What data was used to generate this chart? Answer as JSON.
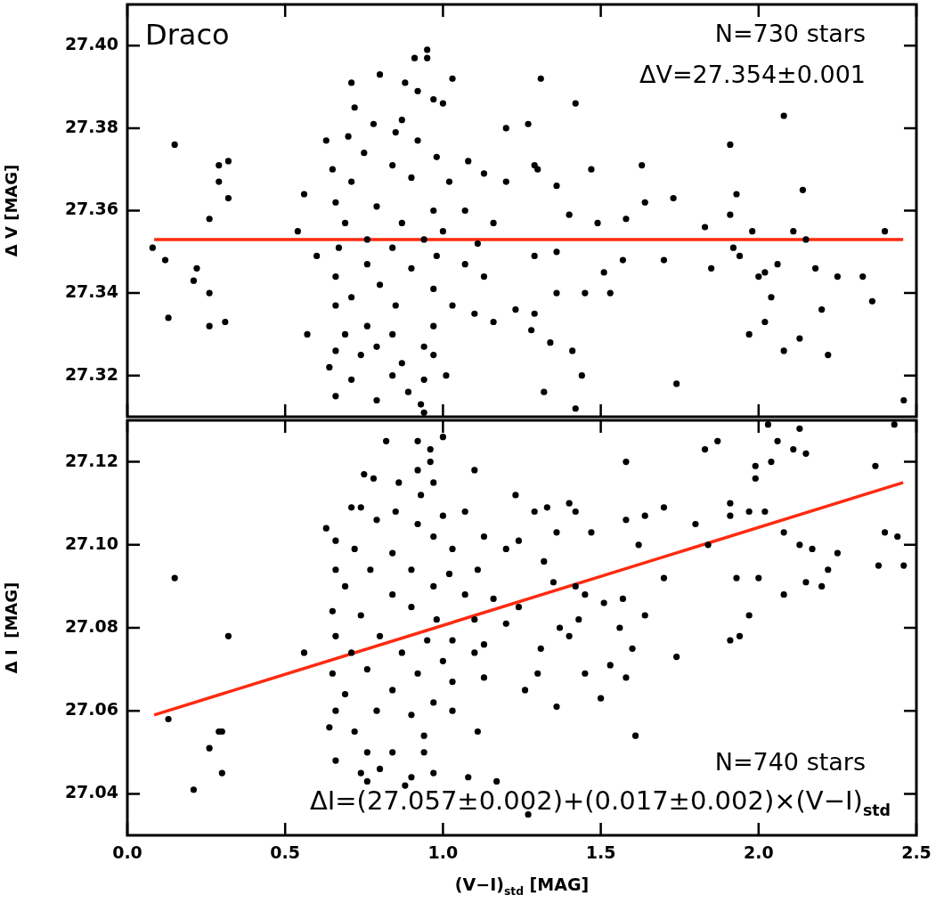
{
  "chart_data": [
    {
      "type": "scatter",
      "ylabel": "Δ V [MAG]",
      "xlim": [
        0,
        2.5
      ],
      "ylim": [
        27.31,
        27.41
      ],
      "xticks": [
        0,
        0.5,
        1,
        1.5,
        2,
        2.5
      ],
      "yticks": [
        {
          "value": 27.32,
          "label": "27.32"
        },
        {
          "value": 27.34,
          "label": "27.34"
        },
        {
          "value": 27.36,
          "label": "27.36"
        },
        {
          "value": 27.38,
          "label": "27.38"
        },
        {
          "value": 27.4,
          "label": "27.40"
        }
      ],
      "tick_labels": "y",
      "annotations": [
        "Draco",
        "N=730 stars",
        "ΔV=27.354±0.001"
      ],
      "series": [
        {
          "color": "#000000",
          "marker": "circle",
          "x": [
            1.31,
            1.42,
            1.27,
            1.2,
            2.08,
            1.91,
            1.47,
            1.63,
            1.64,
            1.73,
            1.93,
            2.14,
            1.91,
            1.83,
            1.49,
            1.58,
            1.98,
            2.11,
            2.4,
            2.15,
            1.92,
            1.94,
            1.7,
            1.57,
            1.85,
            2.06,
            2.18,
            2.0,
            2.02,
            2.25,
            2.33,
            1.51,
            2.04,
            2.2,
            2.36,
            2.02,
            1.97,
            2.13,
            2.08,
            2.22,
            1.74,
            2.46,
            1.42,
            1.44,
            1.32,
            1.53,
            1.45,
            1.36,
            1.34,
            1.41,
            1.29,
            1.28,
            1.23,
            1.36,
            1.29,
            1.4,
            1.36,
            1.29,
            1.3,
            0.08,
            0.12,
            0.15,
            0.13,
            0.22,
            0.21,
            0.26,
            0.26,
            0.26,
            0.31,
            0.29,
            0.29,
            0.32,
            0.32,
            0.56,
            0.54,
            0.57,
            0.6,
            0.95,
            0.95,
            0.91,
            1.03,
            0.71,
            0.8,
            0.88,
            0.92,
            0.97,
            1.0,
            0.72,
            0.78,
            0.87,
            0.63,
            0.7,
            0.85,
            0.92,
            0.98,
            0.75,
            0.65,
            0.84,
            1.08,
            0.71,
            0.9,
            1.02,
            1.13,
            1.2,
            0.66,
            0.79,
            0.97,
            1.07,
            1.16,
            0.69,
            0.87,
            1.0,
            0.76,
            0.94,
            1.11,
            0.67,
            0.84,
            0.98,
            0.76,
            0.9,
            1.07,
            1.13,
            0.66,
            0.8,
            0.97,
            0.71,
            0.85,
            1.03,
            1.1,
            0.66,
            0.76,
            0.97,
            1.16,
            0.69,
            0.84,
            0.94,
            0.66,
            0.79,
            0.74,
            0.87,
            0.64,
            0.97,
            0.71,
            0.79,
            0.66,
            0.89,
            0.94,
            0.93,
            0.94,
            1.01,
            0.84
          ],
          "values": [
            27.392,
            27.386,
            27.381,
            27.38,
            27.383,
            27.376,
            27.37,
            27.371,
            27.362,
            27.363,
            27.364,
            27.365,
            27.359,
            27.356,
            27.357,
            27.358,
            27.355,
            27.355,
            27.355,
            27.353,
            27.351,
            27.349,
            27.348,
            27.348,
            27.346,
            27.347,
            27.346,
            27.344,
            27.345,
            27.344,
            27.344,
            27.345,
            27.339,
            27.336,
            27.338,
            27.333,
            27.33,
            27.329,
            27.326,
            27.325,
            27.318,
            27.314,
            27.312,
            27.32,
            27.316,
            27.34,
            27.34,
            27.34,
            27.328,
            27.326,
            27.335,
            27.331,
            27.336,
            27.35,
            27.349,
            27.359,
            27.366,
            27.371,
            27.37,
            27.351,
            27.348,
            27.376,
            27.334,
            27.346,
            27.343,
            27.358,
            27.34,
            27.332,
            27.333,
            27.371,
            27.367,
            27.372,
            27.363,
            27.364,
            27.355,
            27.33,
            27.349,
            27.399,
            27.397,
            27.397,
            27.392,
            27.391,
            27.393,
            27.391,
            27.389,
            27.387,
            27.386,
            27.385,
            27.381,
            27.382,
            27.377,
            27.378,
            27.379,
            27.377,
            27.373,
            27.374,
            27.37,
            27.371,
            27.372,
            27.367,
            27.368,
            27.367,
            27.369,
            27.367,
            27.362,
            27.361,
            27.36,
            27.36,
            27.357,
            27.357,
            27.357,
            27.355,
            27.353,
            27.353,
            27.352,
            27.351,
            27.351,
            27.349,
            27.347,
            27.346,
            27.347,
            27.344,
            27.344,
            27.342,
            27.341,
            27.339,
            27.337,
            27.337,
            27.335,
            27.337,
            27.332,
            27.332,
            27.333,
            27.33,
            27.33,
            27.327,
            27.326,
            27.327,
            27.325,
            27.323,
            27.322,
            27.325,
            27.319,
            27.314,
            27.315,
            27.316,
            27.319,
            27.313,
            27.311,
            27.32,
            27.32
          ]
        },
        {
          "type": "line",
          "color": "#ff2a10",
          "x": [
            0.085,
            2.458
          ],
          "values": [
            27.353,
            27.353
          ]
        }
      ]
    },
    {
      "type": "scatter",
      "xlabel": "(V−I)$_{std}$ [MAG]",
      "ylabel": "Δ I  [MAG]",
      "xlim": [
        0,
        2.5
      ],
      "ylim": [
        27.03,
        27.13
      ],
      "xticks": [
        {
          "value": 0,
          "label": "0.0"
        },
        {
          "value": 0.5,
          "label": "0.5"
        },
        {
          "value": 1,
          "label": "1.0"
        },
        {
          "value": 1.5,
          "label": "1.5"
        },
        {
          "value": 2,
          "label": "2.0"
        },
        {
          "value": 2.5,
          "label": "2.5"
        }
      ],
      "yticks": [
        {
          "value": 27.04,
          "label": "27.04"
        },
        {
          "value": 27.06,
          "label": "27.06"
        },
        {
          "value": 27.08,
          "label": "27.08"
        },
        {
          "value": 27.1,
          "label": "27.10"
        },
        {
          "value": 27.12,
          "label": "27.12"
        }
      ],
      "annotations": [
        "N=740 stars",
        "ΔI=(27.057±0.002)+(0.017±0.002)×(V−I)$_{std}$"
      ],
      "series": [
        {
          "color": "#000000",
          "marker": "circle",
          "x": [
            2.03,
            2.06,
            2.13,
            2.11,
            2.15,
            2.43,
            1.83,
            1.87,
            2.04,
            1.99,
            1.99,
            2.37,
            1.58,
            1.7,
            1.64,
            1.58,
            1.8,
            1.91,
            1.91,
            1.97,
            2.02,
            2.08,
            2.13,
            2.17,
            2.25,
            2.4,
            2.44,
            2.38,
            2.46,
            2.22,
            2.15,
            2.08,
            2.2,
            2.0,
            1.93,
            1.84,
            1.62,
            1.7,
            1.97,
            1.94,
            1.91,
            1.74,
            1.64,
            1.57,
            1.51,
            1.56,
            1.6,
            1.53,
            1.58,
            1.5,
            1.61,
            1.36,
            1.45,
            1.45,
            1.47,
            1.42,
            1.4,
            1.33,
            1.29,
            1.36,
            1.43,
            1.4,
            1.37,
            1.42,
            1.35,
            1.31,
            1.26,
            1.3,
            1.24,
            1.32,
            1.23,
            1.24,
            1.17,
            1.08,
            1.27,
            0.15,
            0.32,
            0.13,
            0.29,
            0.3,
            0.26,
            0.3,
            0.21,
            0.56,
            0.63,
            1.0,
            0.92,
            0.82,
            0.96,
            0.96,
            0.92,
            0.75,
            0.78,
            1.1,
            0.86,
            0.93,
            0.97,
            0.71,
            0.74,
            0.85,
            1.07,
            0.79,
            0.92,
            1.0,
            0.66,
            0.72,
            0.84,
            0.97,
            1.03,
            1.13,
            1.2,
            0.66,
            0.77,
            0.9,
            1.02,
            1.11,
            0.69,
            0.84,
            0.97,
            1.07,
            1.16,
            0.65,
            0.74,
            0.9,
            0.98,
            1.1,
            1.2,
            0.66,
            0.8,
            0.95,
            1.03,
            1.13,
            0.71,
            0.87,
            1.0,
            1.1,
            0.65,
            0.76,
            0.92,
            1.03,
            1.13,
            0.69,
            0.84,
            0.97,
            0.66,
            0.79,
            0.9,
            1.03,
            1.11,
            0.72,
            0.94,
            0.64,
            0.66,
            0.76,
            0.84,
            0.94,
            0.74,
            0.8,
            0.9,
            0.76,
            0.88,
            0.97
          ],
          "values": [
            27.129,
            27.125,
            27.128,
            27.123,
            27.122,
            27.129,
            27.123,
            27.125,
            27.12,
            27.119,
            27.116,
            27.119,
            27.12,
            27.109,
            27.107,
            27.106,
            27.105,
            27.11,
            27.107,
            27.108,
            27.108,
            27.103,
            27.1,
            27.099,
            27.098,
            27.103,
            27.102,
            27.095,
            27.095,
            27.094,
            27.091,
            27.088,
            27.09,
            27.092,
            27.092,
            27.1,
            27.1,
            27.092,
            27.083,
            27.078,
            27.077,
            27.073,
            27.083,
            27.087,
            27.086,
            27.08,
            27.075,
            27.071,
            27.068,
            27.063,
            27.054,
            27.061,
            27.069,
            27.088,
            27.103,
            27.108,
            27.11,
            27.109,
            27.108,
            27.103,
            27.082,
            27.078,
            27.08,
            27.09,
            27.091,
            27.075,
            27.065,
            27.069,
            27.085,
            27.096,
            27.112,
            27.101,
            27.043,
            27.044,
            27.035,
            27.092,
            27.078,
            27.058,
            27.055,
            27.055,
            27.051,
            27.045,
            27.041,
            27.074,
            27.104,
            27.126,
            27.125,
            27.125,
            27.123,
            27.12,
            27.118,
            27.117,
            27.116,
            27.118,
            27.115,
            27.112,
            27.115,
            27.109,
            27.109,
            27.108,
            27.108,
            27.106,
            27.105,
            27.107,
            27.101,
            27.099,
            27.098,
            27.102,
            27.099,
            27.102,
            27.099,
            27.094,
            27.094,
            27.094,
            27.093,
            27.094,
            27.09,
            27.088,
            27.09,
            27.088,
            27.087,
            27.084,
            27.083,
            27.085,
            27.082,
            27.082,
            27.081,
            27.078,
            27.078,
            27.077,
            27.077,
            27.076,
            27.074,
            27.074,
            27.072,
            27.074,
            27.069,
            27.07,
            27.069,
            27.067,
            27.068,
            27.064,
            27.065,
            27.062,
            27.06,
            27.06,
            27.059,
            27.06,
            27.055,
            27.055,
            27.054,
            27.056,
            27.048,
            27.05,
            27.05,
            27.05,
            27.045,
            27.046,
            27.044,
            27.043,
            27.042,
            27.045
          ]
        },
        {
          "type": "line",
          "color": "#ff2a10",
          "x": [
            0.085,
            2.458
          ],
          "values": [
            27.059,
            27.115
          ]
        }
      ]
    }
  ]
}
